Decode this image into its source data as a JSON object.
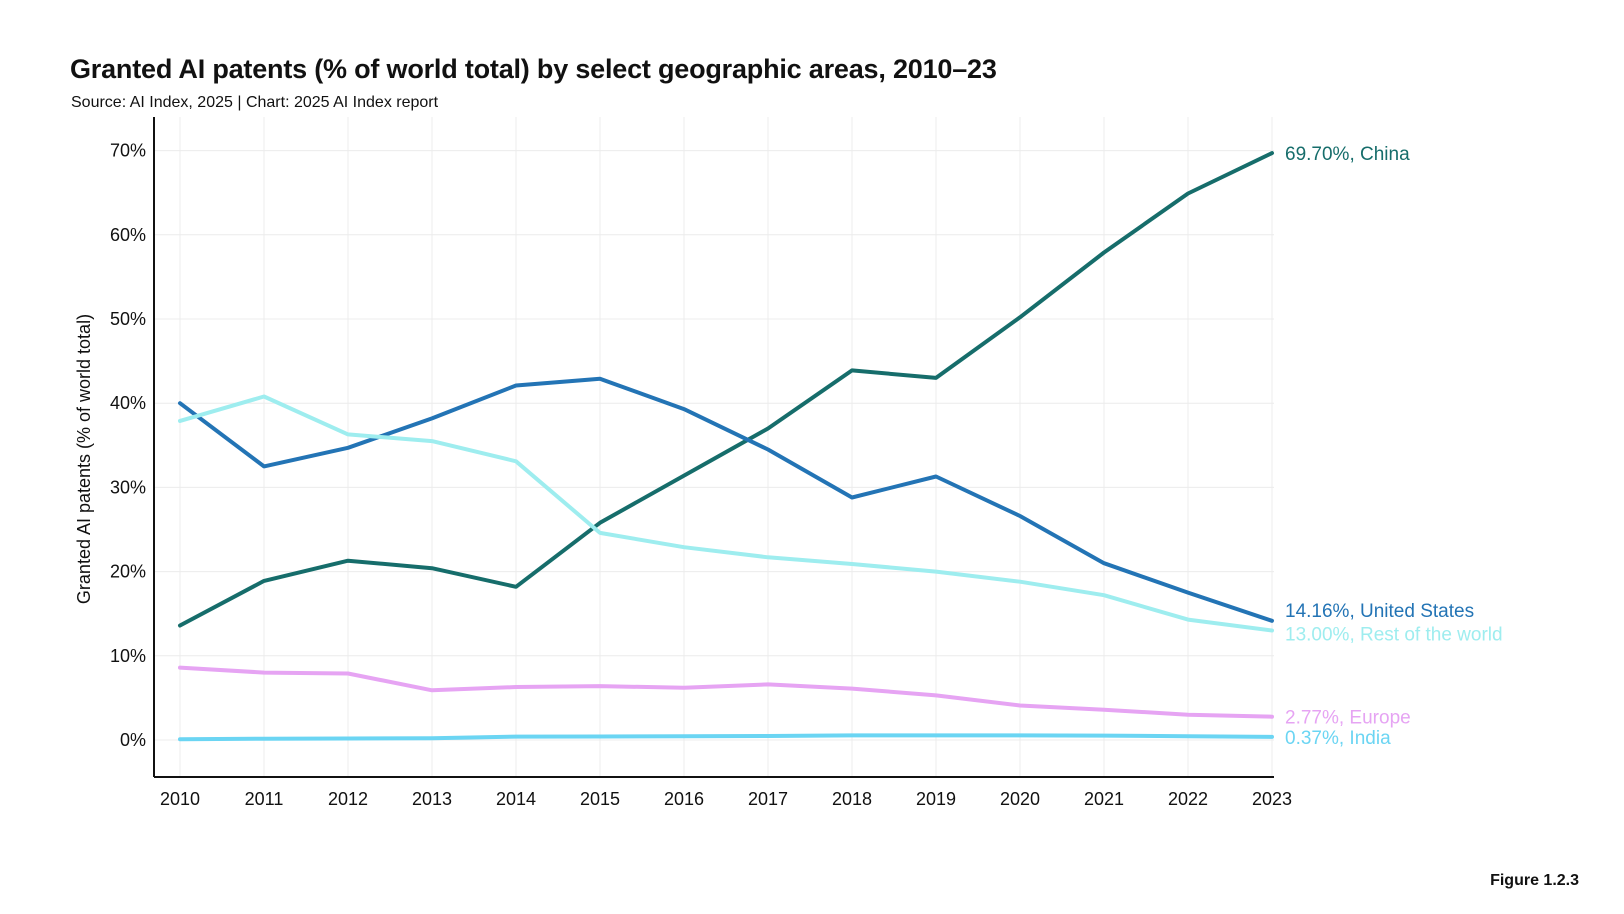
{
  "header": {
    "title": "Granted AI patents (% of world total) by select geographic areas, 2010–23",
    "subtitle": "Source: AI Index, 2025 | Chart: 2025 AI Index report"
  },
  "footer": {
    "figure": "Figure 1.2.3"
  },
  "chart_data": {
    "type": "line",
    "title": "Granted AI patents (% of world total) by select geographic areas, 2010–23",
    "subtitle": "Source: AI Index, 2025 | Chart: 2025 AI Index report",
    "xlabel": "",
    "ylabel": "Granted AI patents (% of world total)",
    "x": [
      2010,
      2011,
      2012,
      2013,
      2014,
      2015,
      2016,
      2017,
      2018,
      2019,
      2020,
      2021,
      2022,
      2023
    ],
    "ylim": [
      -4,
      75
    ],
    "yticks": [
      0,
      10,
      20,
      30,
      40,
      50,
      60,
      70
    ],
    "ytick_labels": [
      "0%",
      "10%",
      "20%",
      "30%",
      "40%",
      "50%",
      "60%",
      "70%"
    ],
    "grid": true,
    "legend": "end-of-line labels",
    "series": [
      {
        "name": "China",
        "color": "#166d6b",
        "end_label": "69.70%, China",
        "values": [
          13.6,
          18.9,
          21.3,
          20.4,
          18.2,
          25.8,
          31.4,
          37.0,
          43.9,
          43.0,
          50.2,
          57.9,
          64.9,
          69.7
        ]
      },
      {
        "name": "United States",
        "color": "#2374b5",
        "end_label": "14.16%, United States",
        "values": [
          40.0,
          32.5,
          34.7,
          38.2,
          42.1,
          42.9,
          39.3,
          34.5,
          28.8,
          31.3,
          26.6,
          21.0,
          17.5,
          14.16
        ]
      },
      {
        "name": "Rest of the world",
        "color": "#9eedef",
        "end_label": "13.00%, Rest of the world",
        "values": [
          37.9,
          40.8,
          36.3,
          35.5,
          33.1,
          24.6,
          22.9,
          21.7,
          20.9,
          20.0,
          18.8,
          17.2,
          14.3,
          13.0
        ]
      },
      {
        "name": "Europe",
        "color": "#e6a4f3",
        "end_label": "2.77%, Europe",
        "values": [
          8.6,
          8.0,
          7.9,
          5.9,
          6.3,
          6.4,
          6.2,
          6.6,
          6.1,
          5.3,
          4.1,
          3.6,
          3.0,
          2.77
        ]
      },
      {
        "name": "India",
        "color": "#6bd5f3",
        "end_label": "0.37%, India",
        "values": [
          0.1,
          0.15,
          0.18,
          0.2,
          0.4,
          0.42,
          0.45,
          0.48,
          0.55,
          0.55,
          0.55,
          0.52,
          0.45,
          0.37
        ]
      }
    ]
  }
}
